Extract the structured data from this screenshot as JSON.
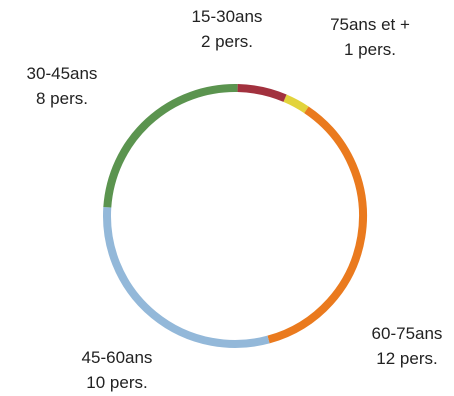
{
  "chart_data": {
    "type": "pie",
    "style": "ring",
    "categories": [
      "75ans et +",
      "60-75ans",
      "45-60ans",
      "30-45ans",
      "15-30ans"
    ],
    "values": [
      1,
      12,
      10,
      8,
      2
    ],
    "value_labels": [
      "1 pers.",
      "12 pers.",
      "10 pers.",
      "8 pers.",
      "2 pers."
    ],
    "colors": [
      "#e2d33c",
      "#ea7a1e",
      "#93b8d9",
      "#5b944f",
      "#a2313e"
    ],
    "start_angle_deg": 23,
    "direction": "clockwise"
  }
}
